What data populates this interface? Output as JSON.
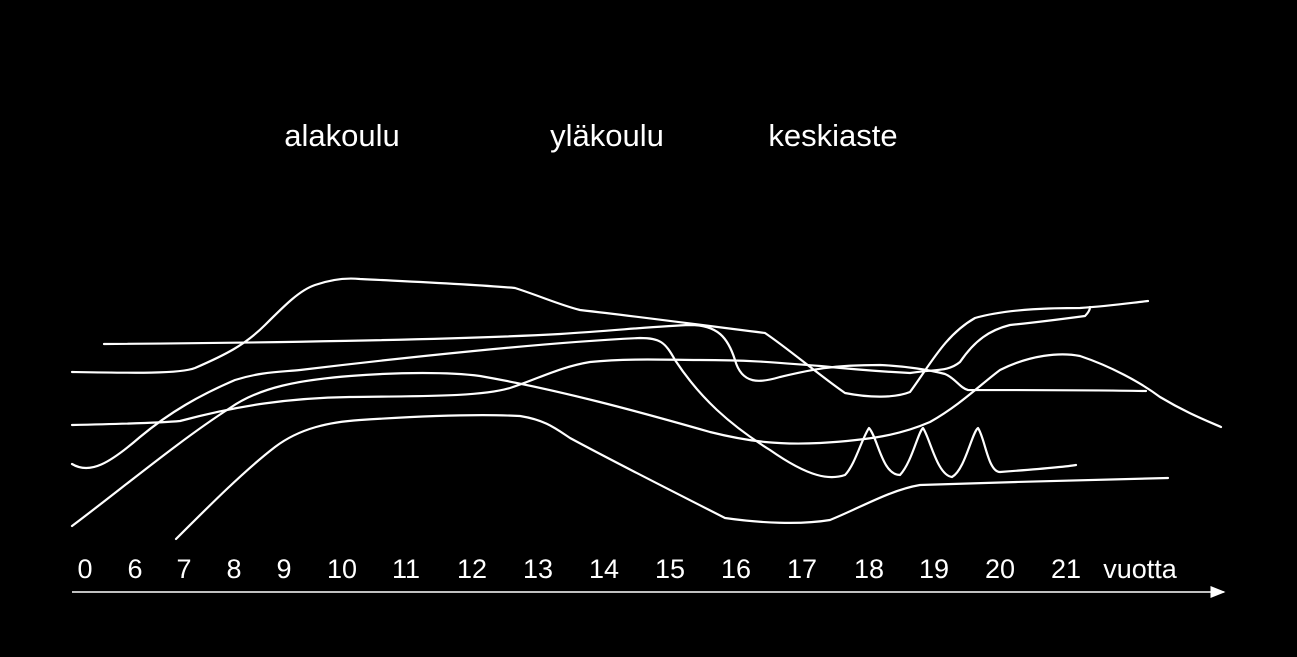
{
  "colors": {
    "background": "#000000",
    "foreground": "#ffffff"
  },
  "stages": [
    {
      "id": "alakoulu",
      "label": "alakoulu"
    },
    {
      "id": "ylakoulu",
      "label": "yläkoulu"
    },
    {
      "id": "keskiaste",
      "label": "keskiaste"
    }
  ],
  "axis": {
    "ticks": [
      "0",
      "6",
      "7",
      "8",
      "9",
      "10",
      "11",
      "12",
      "13",
      "14",
      "15",
      "16",
      "17",
      "18",
      "19",
      "20",
      "21"
    ],
    "unit": "vuotta",
    "arrow": "right-arrow-icon"
  },
  "path_count": 6
}
